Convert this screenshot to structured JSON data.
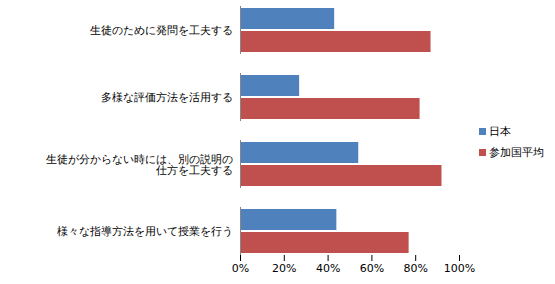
{
  "chart_data": {
    "type": "bar",
    "orientation": "horizontal",
    "categories": [
      "生徒のために発問を工夫する",
      "多様な評価方法を活用する",
      "生徒が分からない時には、別の説明の\n仕方を工夫する",
      "様々な指導方法を用いて授業を行う"
    ],
    "series": [
      {
        "name": "日本",
        "color": "#4f81bd",
        "values": [
          43,
          27,
          54,
          44
        ]
      },
      {
        "name": "参加国平均",
        "color": "#c0504d",
        "values": [
          87,
          82,
          92,
          77
        ]
      }
    ],
    "xlim": [
      0,
      100
    ],
    "xticks": [
      {
        "value": 0,
        "label": "0%"
      },
      {
        "value": 20,
        "label": "20%"
      },
      {
        "value": 40,
        "label": "40%"
      },
      {
        "value": 60,
        "label": "60%"
      },
      {
        "value": 80,
        "label": "80%"
      },
      {
        "value": 100,
        "label": "100%"
      }
    ],
    "grid": false,
    "legend": "right"
  }
}
